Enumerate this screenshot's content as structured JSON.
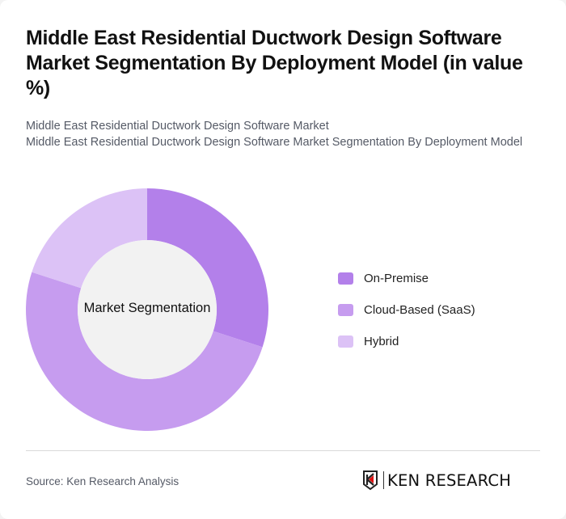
{
  "header": {
    "title": "Middle East Residential Ductwork Design Software Market Segmentation By Deployment Model (in value %)",
    "subtitle_line1": "Middle East Residential Ductwork Design Software Market",
    "subtitle_line2": "Middle East Residential Ductwork Design Software Market Segmentation By Deployment Model"
  },
  "chart": {
    "center_label": "Market Segmentation"
  },
  "legend": [
    {
      "label": "On-Premise",
      "color": "#b380ea"
    },
    {
      "label": "Cloud-Based (SaaS)",
      "color": "#c69cef"
    },
    {
      "label": "Hybrid",
      "color": "#dcc2f6"
    }
  ],
  "footer": {
    "source": "Source: Ken Research Analysis",
    "logo_text": "KEN RESEARCH"
  },
  "chart_data": {
    "type": "pie",
    "subtype": "donut",
    "title": "Middle East Residential Ductwork Design Software Market Segmentation By Deployment Model (in value %)",
    "center_label": "Market Segmentation",
    "categories": [
      "On-Premise",
      "Cloud-Based (SaaS)",
      "Hybrid"
    ],
    "values": [
      30,
      50,
      20
    ],
    "colors": [
      "#b380ea",
      "#c69cef",
      "#dcc2f6"
    ],
    "legend_position": "right",
    "data_labels": false
  }
}
